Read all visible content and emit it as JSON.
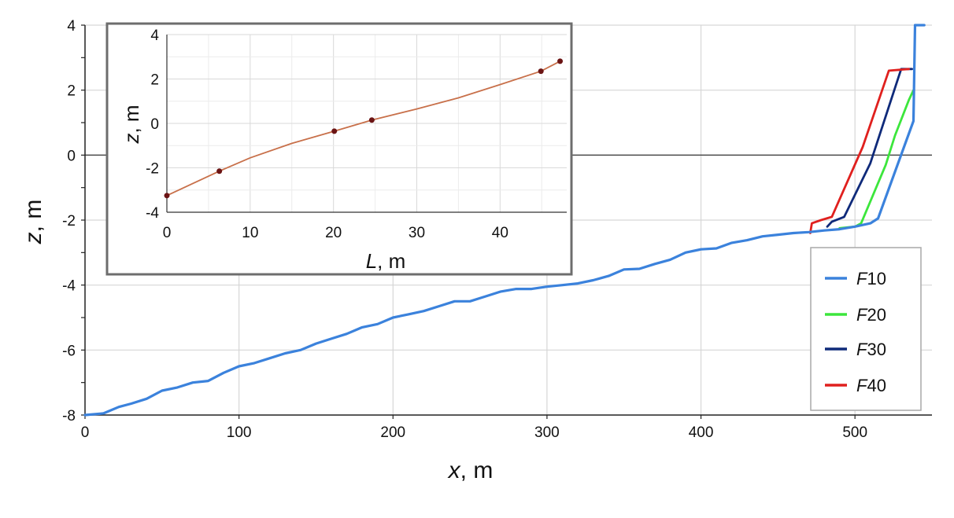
{
  "chart_data": [
    {
      "type": "line",
      "title": "",
      "xlabel": {
        "var": "x",
        "unit": ", m"
      },
      "ylabel": {
        "var": "z",
        "unit": ", m"
      },
      "xlim": [
        0,
        550
      ],
      "ylim": [
        -8,
        4
      ],
      "xticks": [
        0,
        100,
        200,
        300,
        400,
        500
      ],
      "yticks": [
        -8,
        -6,
        -4,
        -2,
        0,
        2,
        4
      ],
      "grid": true,
      "reference_line_y": 0,
      "legend": {
        "position": "bottom-right",
        "entries": [
          {
            "var": "F",
            "num": "10",
            "color": "#3b82dc"
          },
          {
            "var": "F",
            "num": "20",
            "color": "#3ce63c"
          },
          {
            "var": "F",
            "num": "30",
            "color": "#0f2a7a"
          },
          {
            "var": "F",
            "num": "40",
            "color": "#e0201e"
          }
        ]
      },
      "series": [
        {
          "name": "F10",
          "color": "#3b82dc",
          "points": [
            [
              0,
              -8
            ],
            [
              12,
              -7.95
            ],
            [
              22,
              -7.75
            ],
            [
              30,
              -7.65
            ],
            [
              40,
              -7.5
            ],
            [
              50,
              -7.25
            ],
            [
              60,
              -7.15
            ],
            [
              70,
              -7.0
            ],
            [
              80,
              -6.95
            ],
            [
              90,
              -6.7
            ],
            [
              100,
              -6.5
            ],
            [
              110,
              -6.4
            ],
            [
              120,
              -6.25
            ],
            [
              130,
              -6.1
            ],
            [
              140,
              -6.0
            ],
            [
              150,
              -5.8
            ],
            [
              160,
              -5.65
            ],
            [
              170,
              -5.5
            ],
            [
              180,
              -5.3
            ],
            [
              190,
              -5.2
            ],
            [
              200,
              -5.0
            ],
            [
              210,
              -4.9
            ],
            [
              220,
              -4.8
            ],
            [
              230,
              -4.65
            ],
            [
              240,
              -4.5
            ],
            [
              250,
              -4.5
            ],
            [
              260,
              -4.35
            ],
            [
              270,
              -4.2
            ],
            [
              280,
              -4.12
            ],
            [
              290,
              -4.12
            ],
            [
              300,
              -4.05
            ],
            [
              310,
              -4.0
            ],
            [
              320,
              -3.95
            ],
            [
              330,
              -3.85
            ],
            [
              340,
              -3.72
            ],
            [
              350,
              -3.52
            ],
            [
              360,
              -3.5
            ],
            [
              370,
              -3.35
            ],
            [
              380,
              -3.22
            ],
            [
              390,
              -3.0
            ],
            [
              400,
              -2.9
            ],
            [
              410,
              -2.87
            ],
            [
              420,
              -2.7
            ],
            [
              430,
              -2.62
            ],
            [
              440,
              -2.5
            ],
            [
              450,
              -2.45
            ],
            [
              460,
              -2.4
            ],
            [
              470,
              -2.37
            ],
            [
              480,
              -2.32
            ],
            [
              490,
              -2.28
            ],
            [
              500,
              -2.2
            ],
            [
              510,
              -2.1
            ],
            [
              515,
              -1.95
            ],
            [
              538,
              1.05
            ],
            [
              539,
              4.0
            ],
            [
              545,
              4.0
            ]
          ]
        },
        {
          "name": "F20",
          "color": "#3ce63c",
          "points": [
            [
              490,
              -2.25
            ],
            [
              500,
              -2.2
            ],
            [
              504,
              -2.1
            ],
            [
              520,
              -0.3
            ],
            [
              526,
              0.6
            ],
            [
              535,
              1.7
            ],
            [
              538,
              2.0
            ]
          ]
        },
        {
          "name": "F30",
          "color": "#0f2a7a",
          "points": [
            [
              482,
              -2.2
            ],
            [
              485,
              -2.05
            ],
            [
              493,
              -1.9
            ],
            [
              510,
              -0.25
            ],
            [
              530,
              2.65
            ],
            [
              537,
              2.65
            ]
          ]
        },
        {
          "name": "F40",
          "color": "#e0201e",
          "points": [
            [
              471,
              -2.4
            ],
            [
              472,
              -2.1
            ],
            [
              478,
              -2.0
            ],
            [
              485,
              -1.9
            ],
            [
              505,
              0.25
            ],
            [
              522,
              2.6
            ],
            [
              535,
              2.65
            ]
          ]
        }
      ]
    },
    {
      "type": "line",
      "title": "",
      "xlabel": {
        "var": "L",
        "unit": ", m"
      },
      "ylabel": {
        "var": "z",
        "unit": ", m"
      },
      "xlim": [
        0,
        48
      ],
      "ylim": [
        -4,
        4
      ],
      "xticks": [
        0,
        10,
        20,
        30,
        40
      ],
      "yticks": [
        -4,
        -2,
        0,
        2,
        4
      ],
      "grid": true,
      "series": [
        {
          "color": "#c8704a",
          "points": [
            [
              0,
              -3.25
            ],
            [
              6.3,
              -2.15
            ],
            [
              10,
              -1.55
            ],
            [
              15,
              -0.9
            ],
            [
              20.1,
              -0.35
            ],
            [
              24.6,
              0.15
            ],
            [
              30,
              0.65
            ],
            [
              35,
              1.15
            ],
            [
              40,
              1.75
            ],
            [
              44.9,
              2.35
            ],
            [
              47.2,
              2.8
            ]
          ],
          "markers": [
            [
              0,
              -3.25
            ],
            [
              6.3,
              -2.15
            ],
            [
              20.1,
              -0.35
            ],
            [
              24.6,
              0.15
            ],
            [
              44.9,
              2.35
            ],
            [
              47.2,
              2.8
            ]
          ]
        }
      ]
    }
  ]
}
